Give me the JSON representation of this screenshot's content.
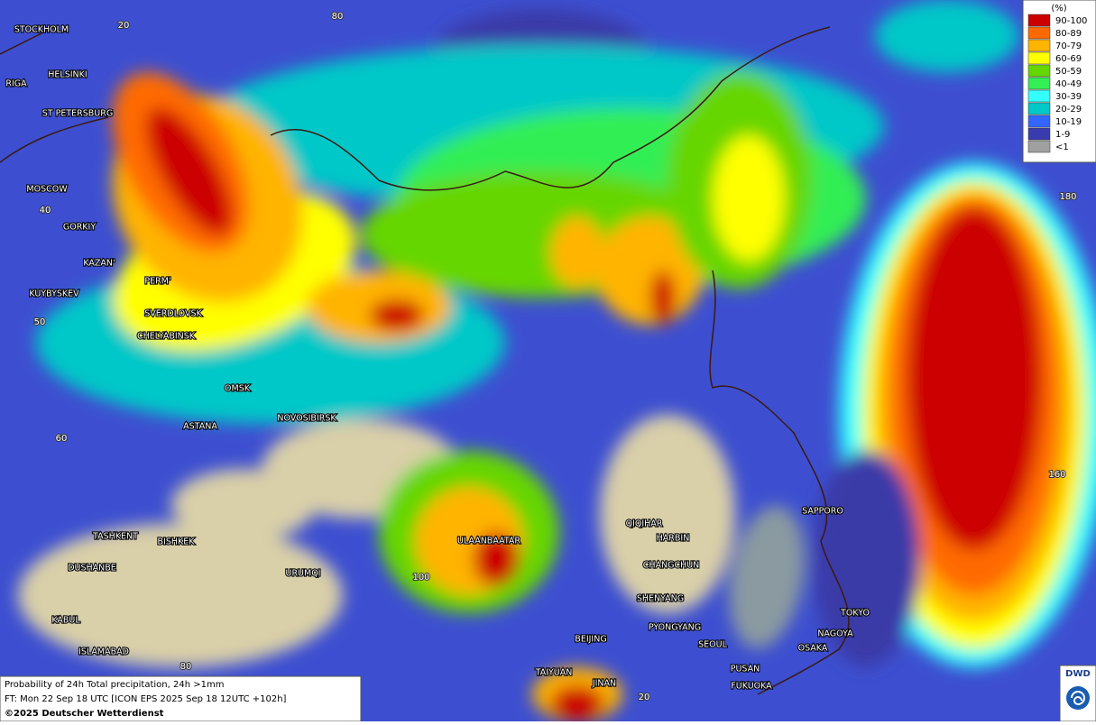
{
  "legend": {
    "unit": "(%)",
    "items": [
      {
        "label": "90-100",
        "color": "#cc0000"
      },
      {
        "label": "80-89",
        "color": "#ff6a00"
      },
      {
        "label": "70-79",
        "color": "#ffb400"
      },
      {
        "label": "60-69",
        "color": "#ffff00"
      },
      {
        "label": "50-59",
        "color": "#66d600"
      },
      {
        "label": "40-49",
        "color": "#33ee55"
      },
      {
        "label": "30-39",
        "color": "#33ffff"
      },
      {
        "label": "20-29",
        "color": "#00c8c8"
      },
      {
        "label": "10-19",
        "color": "#3366ff"
      },
      {
        "label": "1-9",
        "color": "#3b3bb0"
      },
      {
        "label": "<1",
        "color": "#a0a0a0"
      }
    ]
  },
  "cities": [
    "STOCKHOLM",
    "HELSINKI",
    "RIGA",
    "ST PETERSBURG",
    "MOSCOW",
    "GORKIY",
    "KAZAN'",
    "PERM'",
    "KUYBYSKEV",
    "SVERDLOVSK",
    "CHELYABINSK",
    "OMSK",
    "NOVOSIBIRSK",
    "ASTANA",
    "TASHKENT",
    "BISHKEK",
    "DUSHANBE",
    "URUMQI",
    "ULAANBAATAR",
    "QIQIHAR",
    "HARBIN",
    "CHANGCHUN",
    "SHENYANG",
    "PYONGYANG",
    "SEOUL",
    "BEIJING",
    "TAIYUAN",
    "JINAN",
    "PUSAN",
    "FUKUOKA",
    "NAGOYA",
    "OSAKA",
    "TOKYO",
    "SAPPORO",
    "KABUL",
    "ISLAMABAD"
  ],
  "grid_labels": [
    80,
    20,
    40,
    50,
    60,
    100,
    80,
    180,
    160,
    20
  ],
  "footer": {
    "line1": "Probability of 24h Total precipitation, 24h >1mm",
    "line2": "FT: Mon 22 Sep 18 UTC [ICON EPS 2025 Sep 18 12UTC +102h]",
    "line3": "©2025 Deutscher Wetterdienst"
  },
  "logo": "DWD"
}
